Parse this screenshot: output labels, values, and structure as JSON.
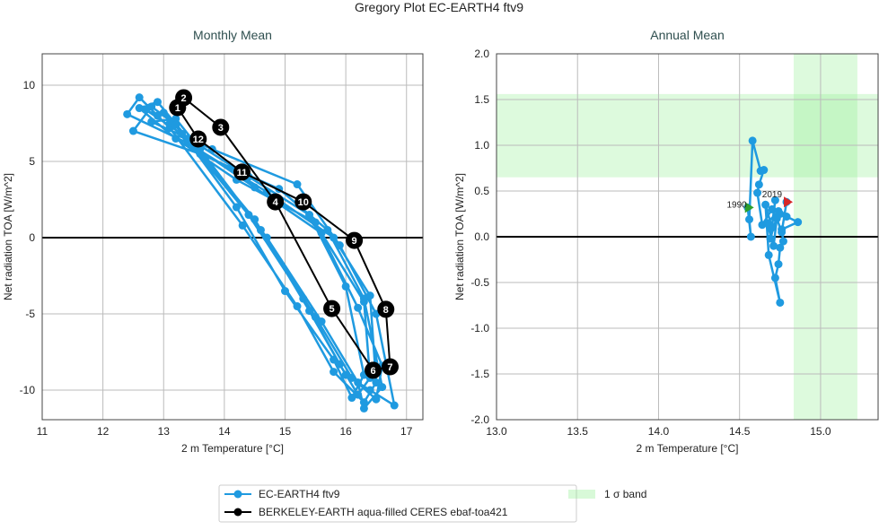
{
  "figure_title": "Gregory Plot EC-EARTH4 ftv9",
  "colors": {
    "model": "#1f9ae0",
    "obs": "#000000",
    "band": "#90ee90",
    "start": "#2ca02c",
    "end": "#d62728",
    "title": "#2f4f4f"
  },
  "legend": {
    "model_label": "EC-EARTH4 ftv9",
    "obs_label": "BERKELEY-EARTH aqua-filled CERES ebaf-toa421",
    "band_label": "1 σ band"
  },
  "chart_data": [
    {
      "type": "line",
      "title": "Monthly Mean",
      "xlabel": "2 m Temperature [°C]",
      "ylabel": "Net radiation TOA [W/m^2]",
      "xlim": [
        11,
        17.27
      ],
      "ylim": [
        -11.94,
        12.06
      ],
      "xticks": [
        "11",
        "12",
        "13",
        "14",
        "15",
        "16",
        "17"
      ],
      "yticks": [
        "-10",
        "-5",
        "0",
        "5",
        "10"
      ],
      "grid": true,
      "zero_line": true,
      "series": [
        {
          "name": "EC-EARTH4 ftv9",
          "x": [
            12.9,
            12.7,
            13.3,
            14.4,
            15.3,
            15.9,
            16.2,
            16.4,
            16.3,
            15.6,
            14.5,
            13.5,
            12.4,
            12.6,
            13.1,
            14.3,
            15.2,
            15.8,
            16.3,
            16.5,
            16.4,
            15.8,
            14.7,
            13.4,
            13.1,
            13.0,
            13.5,
            14.6,
            15.5,
            16.1,
            16.5,
            16.6,
            16.2,
            15.5,
            14.2,
            13.2,
            12.6,
            12.9,
            13.4,
            14.5,
            15.4,
            16.0,
            16.4,
            16.8,
            16.5,
            15.9,
            15.2,
            13.8,
            12.8,
            13.2,
            13.6,
            14.7,
            15.6,
            16.2,
            16.3,
            16.6,
            16.3,
            15.7,
            14.9,
            13.6,
            12.5,
            12.8,
            13.2,
            14.2,
            15.0,
            15.8,
            16.1,
            16.3,
            16.0,
            15.4,
            14.4,
            13.3
          ],
          "y": [
            8.0,
            8.4,
            6.8,
            1.5,
            -4.0,
            -8.3,
            -10.3,
            -9.2,
            -4.2,
            0.3,
            3.3,
            6.0,
            8.1,
            9.2,
            7.2,
            0.8,
            -4.5,
            -8.8,
            -10.8,
            -9.5,
            -3.8,
            0.0,
            3.0,
            6.2,
            7.5,
            8.2,
            6.0,
            0.5,
            -5.2,
            -9.2,
            -10.6,
            -8.4,
            -4.6,
            1.0,
            3.8,
            6.5,
            8.5,
            8.9,
            6.5,
            1.2,
            -4.8,
            -9.0,
            -10.0,
            -11.0,
            -5.0,
            -0.5,
            3.5,
            5.8,
            7.6,
            7.8,
            5.8,
            0.0,
            -5.5,
            -9.5,
            -11.2,
            -9.8,
            -4.0,
            0.5,
            3.2,
            5.5,
            7.0,
            8.6,
            7.4,
            2.0,
            -3.5,
            -8.0,
            -10.5,
            -9.0,
            -3.2,
            1.5,
            4.0,
            6.8
          ]
        },
        {
          "name": "BERKELEY-EARTH aqua-filled CERES ebaf-toa421",
          "labels": [
            "1",
            "2",
            "3",
            "4",
            "5",
            "6",
            "7",
            "8",
            "9",
            "10",
            "11",
            "12"
          ],
          "x": [
            13.23,
            13.33,
            13.94,
            14.84,
            15.77,
            16.45,
            16.73,
            16.66,
            16.14,
            15.3,
            14.29,
            13.57
          ],
          "y": [
            8.53,
            9.18,
            7.24,
            2.35,
            -4.65,
            -8.7,
            -8.47,
            -4.7,
            -0.18,
            2.35,
            4.3,
            6.47
          ]
        }
      ]
    },
    {
      "type": "line",
      "title": "Annual Mean",
      "xlabel": "2 m Temperature [°C]",
      "ylabel": "Net radiation TOA [W/m^2]",
      "xlim": [
        13.0,
        15.355
      ],
      "ylim": [
        -2.0,
        2.0
      ],
      "xticks": [
        "13.0",
        "13.5",
        "14.0",
        "14.5",
        "15.0"
      ],
      "yticks": [
        "-2.0",
        "-1.5",
        "-1.0",
        "-0.5",
        "0.0",
        "0.5",
        "1.0",
        "1.5",
        "2.0"
      ],
      "grid": true,
      "zero_line": true,
      "bands": {
        "y": [
          0.65,
          1.56
        ],
        "x": [
          14.834,
          15.227
        ]
      },
      "start_label": "1990",
      "end_label": "2019",
      "series": [
        {
          "name": "EC-EARTH4 ftv9",
          "x": [
            14.55,
            14.57,
            14.56,
            14.58,
            14.63,
            14.65,
            14.62,
            14.61,
            14.64,
            14.7,
            14.75,
            14.79,
            14.86,
            14.76,
            14.77,
            14.75,
            14.74,
            14.72,
            14.75,
            14.68,
            14.66,
            14.7,
            14.72,
            14.69,
            14.74,
            14.67,
            14.71,
            14.73,
            14.76,
            14.79
          ],
          "y": [
            0.32,
            0.0,
            0.19,
            1.05,
            0.72,
            0.73,
            0.57,
            0.48,
            0.13,
            0.3,
            0.25,
            0.22,
            0.16,
            0.08,
            -0.05,
            -0.12,
            -0.3,
            -0.45,
            -0.72,
            -0.2,
            0.35,
            0.1,
            0.4,
            -0.02,
            0.28,
            0.15,
            -0.1,
            0.2,
            0.05,
            0.38
          ]
        }
      ]
    }
  ]
}
